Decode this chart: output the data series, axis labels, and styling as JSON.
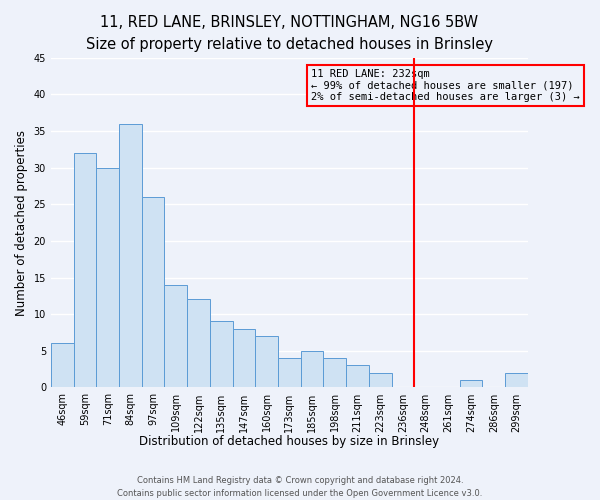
{
  "title": "11, RED LANE, BRINSLEY, NOTTINGHAM, NG16 5BW",
  "subtitle": "Size of property relative to detached houses in Brinsley",
  "xlabel": "Distribution of detached houses by size in Brinsley",
  "ylabel": "Number of detached properties",
  "bar_labels": [
    "46sqm",
    "59sqm",
    "71sqm",
    "84sqm",
    "97sqm",
    "109sqm",
    "122sqm",
    "135sqm",
    "147sqm",
    "160sqm",
    "173sqm",
    "185sqm",
    "198sqm",
    "211sqm",
    "223sqm",
    "236sqm",
    "248sqm",
    "261sqm",
    "274sqm",
    "286sqm",
    "299sqm"
  ],
  "bar_values": [
    6,
    32,
    30,
    36,
    26,
    14,
    12,
    9,
    8,
    7,
    4,
    5,
    4,
    3,
    2,
    0,
    0,
    0,
    1,
    0,
    2
  ],
  "bar_color": "#cfe2f3",
  "bar_edge_color": "#5b9bd5",
  "ylim": [
    0,
    45
  ],
  "yticks": [
    0,
    5,
    10,
    15,
    20,
    25,
    30,
    35,
    40,
    45
  ],
  "vline_x": 15.5,
  "vline_color": "red",
  "annotation_title": "11 RED LANE: 232sqm",
  "annotation_line1": "← 99% of detached houses are smaller (197)",
  "annotation_line2": "2% of semi-detached houses are larger (3) →",
  "footer_line1": "Contains HM Land Registry data © Crown copyright and database right 2024.",
  "footer_line2": "Contains public sector information licensed under the Open Government Licence v3.0.",
  "bg_color": "#eef2fa",
  "grid_color": "white",
  "title_fontsize": 10.5,
  "axis_label_fontsize": 8.5,
  "tick_fontsize": 7,
  "annotation_fontsize": 7.5,
  "footer_fontsize": 6
}
